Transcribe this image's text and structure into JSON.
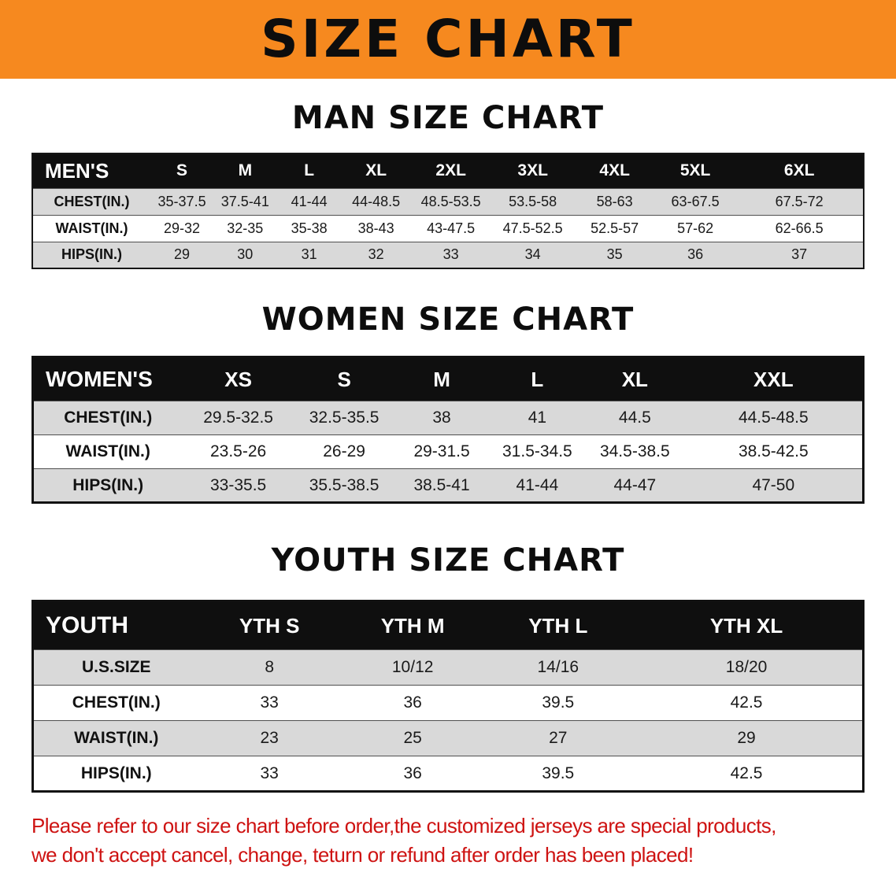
{
  "colors": {
    "accent": "#f6891f",
    "header_bg": "#0f0f0f",
    "row_gray": "#d9d9d9",
    "notice_red": "#ce1312"
  },
  "banner": {
    "title": "SIZE CHART"
  },
  "sections": [
    {
      "heading": "MAN SIZE CHART",
      "table": {
        "header": [
          "MEN'S",
          "S",
          "M",
          "L",
          "XL",
          "2XL",
          "3XL",
          "4XL",
          "5XL",
          "6XL"
        ],
        "rows": [
          [
            "CHEST(IN.)",
            "35-37.5",
            "37.5-41",
            "41-44",
            "44-48.5",
            "48.5-53.5",
            "53.5-58",
            "58-63",
            "63-67.5",
            "67.5-72"
          ],
          [
            "WAIST(IN.)",
            "29-32",
            "32-35",
            "35-38",
            "38-43",
            "43-47.5",
            "47.5-52.5",
            "52.5-57",
            "57-62",
            "62-66.5"
          ],
          [
            "HIPS(IN.)",
            "29",
            "30",
            "31",
            "32",
            "33",
            "34",
            "35",
            "36",
            "37"
          ]
        ]
      }
    },
    {
      "heading": "WOMEN SIZE CHART",
      "table": {
        "header": [
          "WOMEN'S",
          "XS",
          "S",
          "M",
          "L",
          "XL",
          "XXL"
        ],
        "rows": [
          [
            "CHEST(IN.)",
            "29.5-32.5",
            "32.5-35.5",
            "38",
            "41",
            "44.5",
            "44.5-48.5"
          ],
          [
            "WAIST(IN.)",
            "23.5-26",
            "26-29",
            "29-31.5",
            "31.5-34.5",
            "34.5-38.5",
            "38.5-42.5"
          ],
          [
            "HIPS(IN.)",
            "33-35.5",
            "35.5-38.5",
            "38.5-41",
            "41-44",
            "44-47",
            "47-50"
          ]
        ]
      }
    },
    {
      "heading": "YOUTH SIZE CHART",
      "table": {
        "header": [
          "YOUTH",
          "YTH S",
          "YTH M",
          "YTH L",
          "YTH XL"
        ],
        "rows": [
          [
            "U.S.SIZE",
            "8",
            "10/12",
            "14/16",
            "18/20"
          ],
          [
            "CHEST(IN.)",
            "33",
            "36",
            "39.5",
            "42.5"
          ],
          [
            "WAIST(IN.)",
            "23",
            "25",
            "27",
            "29"
          ],
          [
            "HIPS(IN.)",
            "33",
            "36",
            "39.5",
            "42.5"
          ]
        ]
      }
    }
  ],
  "notice": {
    "lines": [
      "Please refer to our size chart before order,the customized jerseys are special products,",
      "we don't accept cancel, change, teturn or refund after order has been placed!"
    ]
  }
}
